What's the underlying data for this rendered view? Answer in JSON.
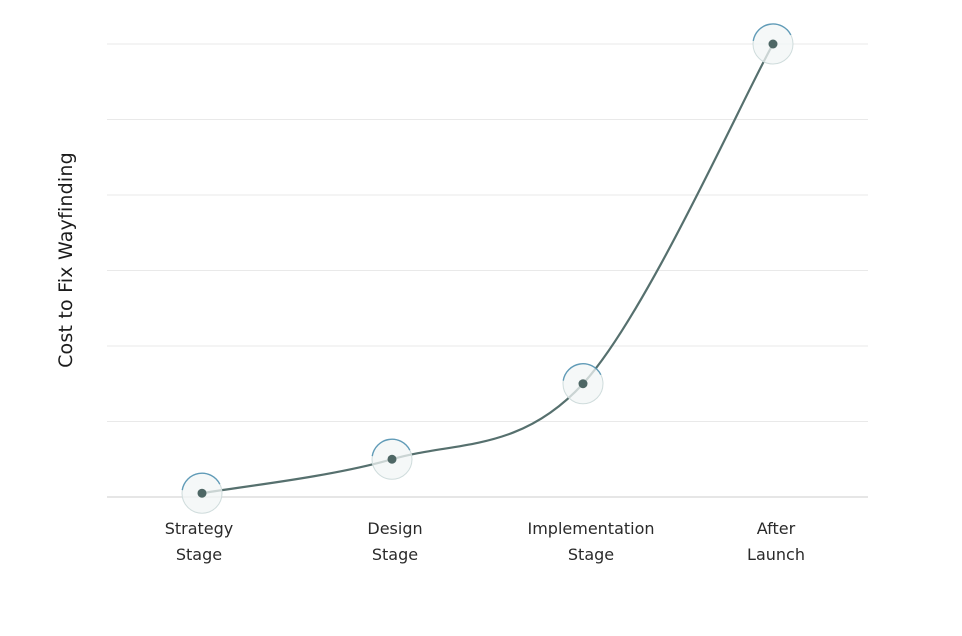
{
  "chart_data": {
    "type": "line",
    "title": "",
    "xlabel": "",
    "ylabel": "Cost to Fix Wayfinding",
    "categories": [
      [
        "Strategy",
        "Stage"
      ],
      [
        "Design",
        "Stage"
      ],
      [
        "Implementation",
        "Stage"
      ],
      [
        "After",
        "Launch"
      ]
    ],
    "series": [
      {
        "values": [
          0.5,
          5,
          15,
          60
        ],
        "color": "#56706e"
      }
    ],
    "ylim": [
      0,
      60
    ],
    "y_gridlines": 7,
    "grid": true,
    "legend": "none",
    "colors": {
      "line": "#56706e",
      "marker": "#4e6765",
      "halo_accent": "#4c8fb0",
      "gridline": "#e9e9e9"
    }
  }
}
